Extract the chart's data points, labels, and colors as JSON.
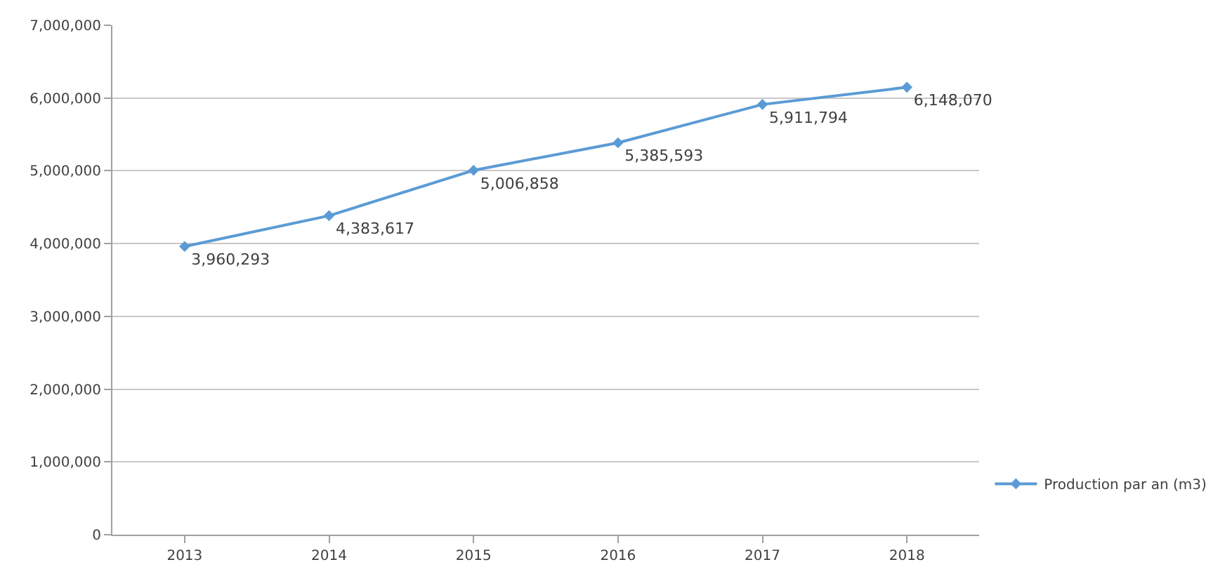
{
  "chart_data": {
    "type": "line",
    "categories": [
      "2013",
      "2014",
      "2015",
      "2016",
      "2017",
      "2018"
    ],
    "series": [
      {
        "name": "Production par an (m3)",
        "color": "#5b9bd5",
        "values": [
          3960293,
          4383617,
          5006858,
          5385593,
          5911794,
          6148070
        ],
        "value_labels": [
          "3,960,293",
          "4,383,617",
          "5,006,858",
          "5,385,593",
          "5,911,794",
          "6,148,070"
        ]
      }
    ],
    "ylim": [
      0,
      7000000
    ],
    "yticks": [
      {
        "value": 0,
        "label": "0"
      },
      {
        "value": 1000000,
        "label": "1,000,000"
      },
      {
        "value": 2000000,
        "label": "2,000,000"
      },
      {
        "value": 3000000,
        "label": "3,000,000"
      },
      {
        "value": 4000000,
        "label": "4,000,000"
      },
      {
        "value": 5000000,
        "label": "5,000,000"
      },
      {
        "value": 6000000,
        "label": "6,000,000"
      },
      {
        "value": 7000000,
        "label": "7,000,000"
      }
    ],
    "grid": "y",
    "legend": "right",
    "marker": "diamond",
    "line_style": "solid"
  }
}
